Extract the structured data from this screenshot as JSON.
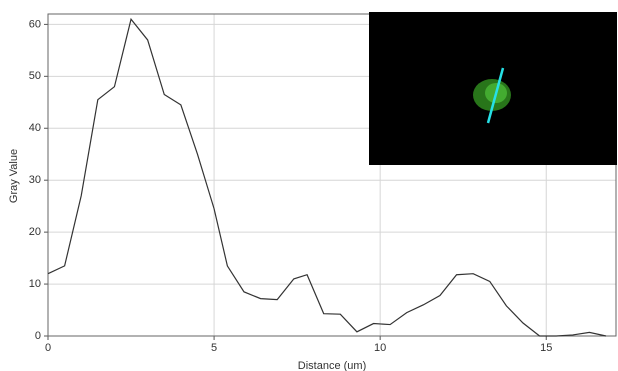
{
  "chart_data": {
    "type": "line",
    "x_label": "Distance (um)",
    "y_label": "Gray Value",
    "x": [
      0,
      0.5,
      1,
      1.5,
      2,
      2.5,
      3,
      3.5,
      4,
      4.5,
      5,
      5.4,
      5.9,
      6.4,
      6.9,
      7.4,
      7.8,
      8.3,
      8.8,
      9.3,
      9.8,
      10.3,
      10.8,
      11.3,
      11.8,
      12.3,
      12.8,
      13.3,
      13.8,
      14.3,
      14.8,
      15.3,
      15.8,
      16.3,
      16.8
    ],
    "values": [
      12,
      13.5,
      27,
      45.5,
      48,
      61,
      57,
      46.5,
      44.5,
      35,
      24.5,
      13.5,
      8.5,
      7.2,
      7,
      11,
      11.8,
      4.3,
      4.2,
      0.8,
      2.4,
      2.2,
      4.5,
      6,
      7.8,
      11.8,
      12,
      10.5,
      5.8,
      2.5,
      0,
      0,
      0.2,
      0.7,
      0
    ],
    "color": "#333333",
    "xlim": [
      0,
      17.1
    ],
    "xticks": [
      0,
      5,
      10,
      15
    ],
    "ylim": [
      0,
      62
    ],
    "yticks": [
      0,
      10,
      20,
      30,
      40,
      50,
      60
    ],
    "grid": true
  }
}
